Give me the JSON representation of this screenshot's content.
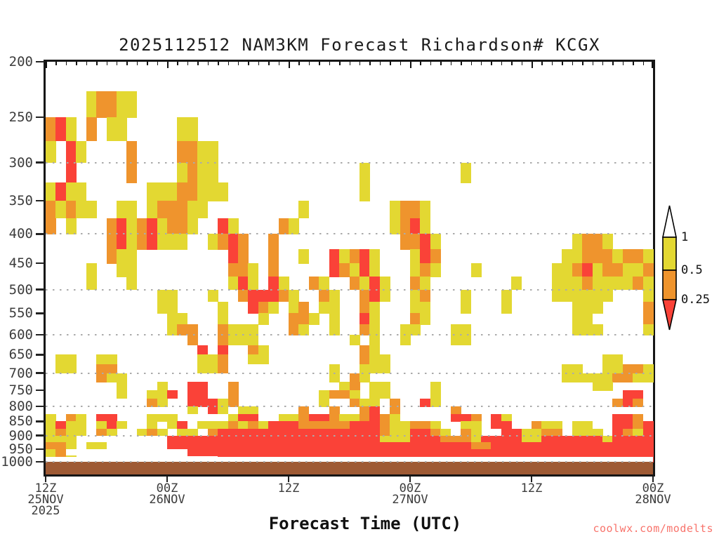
{
  "title": "2025112512 NAM3KM Forecast Richardson# KCGX",
  "watermark": "coolwx.com/modelts",
  "x_axis": {
    "title": "Forecast Time (UTC)",
    "ticks": [
      {
        "hour": 0,
        "lines": [
          "12Z",
          "25NOV",
          "2025"
        ]
      },
      {
        "hour": 12,
        "lines": [
          "00Z",
          "26NOV"
        ]
      },
      {
        "hour": 24,
        "lines": [
          "12Z"
        ]
      },
      {
        "hour": 36,
        "lines": [
          "00Z",
          "27NOV"
        ]
      },
      {
        "hour": 48,
        "lines": [
          "12Z"
        ]
      },
      {
        "hour": 60,
        "lines": [
          "00Z",
          "28NOV"
        ]
      }
    ]
  },
  "y_axis": {
    "unit": "hPa",
    "ticks": [
      200,
      250,
      300,
      350,
      400,
      450,
      500,
      550,
      600,
      650,
      700,
      750,
      800,
      850,
      900,
      950,
      1000
    ]
  },
  "gridlines_hpa": [
    300,
    400,
    500,
    600,
    700,
    800,
    900,
    1000
  ],
  "colorbar": {
    "labels": [
      "1",
      "0.5",
      "0.25"
    ],
    "segments": [
      {
        "range": "> 1",
        "color": "#ffffff"
      },
      {
        "range": "0.5 - 1",
        "color": "#e3d832"
      },
      {
        "range": "0.25 - 0.5",
        "color": "#ef942d"
      },
      {
        "range": "< 0.25",
        "color": "#fa4238"
      }
    ]
  },
  "colors": {
    "yellow": "#e3d832",
    "orange": "#ef942d",
    "red": "#fa4238",
    "brown": "#9e5a34",
    "grid": "#ababab",
    "text": "#3c3c3c",
    "watermark": "#f8736b"
  },
  "chart_data": {
    "type": "heatmap",
    "title": "2025112512 NAM3KM Forecast Richardson# KCGX",
    "xlabel": "Forecast Time (UTC)",
    "x_hours_range": [
      0,
      60
    ],
    "x_hours_per_cell": 1,
    "x_start": "12Z 25NOV 2025",
    "x_end": "00Z 28NOV 2025",
    "y_scale": "log-pressure",
    "pressure_top_hpa": 200,
    "pressure_bottom_hpa": 1000,
    "pressure_step_hpa": 25,
    "legend_thresholds": [
      0.25,
      0.5,
      1
    ],
    "cell_key": {
      ".": "Ri > 1 (white)",
      "y": "0.5 < Ri <= 1 (yellow)",
      "o": "0.25 < Ri <= 0.5 (orange)",
      "r": "Ri <= 0.25 (red)"
    },
    "surface": "brown below-ground band from ~1000 hPa to plot bottom",
    "rows": [
      "............................................................",
      "....yooyy...................................................",
      "ory.o.yy.....yy.............................................",
      "y.ry....o....ooyy...........................................",
      "..r.....o....yoyy..............y.........y..................",
      "yryy......yyyooyyy.............y............................",
      "oyoyy..yy.yoooyy.........y........yooy......................",
      "o.y...oryoryooy..ry....oy.........yory......................",
      "......oryoryyy..yoro..o............oory.............yooy....",
      "......oyy.........ro..o..y..ryory...yro............yyoooyooy",
      "....y..yy.........ooy.o.....royry...yoy...y.......yyoryooyyo",
      "....y...y.........yry.ry..oy..oyry..oy........y...yyyoyyyyoy",
      "...........yy...y..orrroy..oy..ory..yo...y...y....yyyyyy...y",
      "...........yy....y..roy.yo.yy..oy...yy...y...y......yyy....o",
      "............yy...y...y..ooy.y..ry...oy..............yy.....o",
      "............yoo..oyyy...oy..y..oy..yy...yy..........yyy....y",
      "..............o..oyyy.........y.y..y....yy..................",
      "...............r.r..oy.........oy...........................",
      ".yy..yy........yyo..yy.........oyy.....................yy...",
      ".yy..oo........yyo..........y..yyy.................yy..yyooy",
      ".....oyy....................y.oy...................yyyyyooyy",
      ".......y...y..rr..o..........yo.yy....y...............yy....",
      ".......y..yyr.rr..o........yooy.yy....y..................rr.",
      "..........oy..rrryo........y..oyy.o..ry.................oro.",
      "..............y.ry.yy....o..o..or.o.....o...................",
      "y.oy.rr...yyy.....yrr..yyorroyyoroy.....rro.ry..........rro.",
      "yryy.yry..y.yr.yyyoyoyrrrooooorrroyyooy..yy.rr..oyy.yy..rror",
      "yoyy.oy..yoy.yy.orrrrrrrrrrrrrrrroyyrroy.oy..rryyoo.yyy.royr",
      "yyy.........rrrrrrrrrrrrrrrrrrrrryyyrrroooyrrrryyrrrrrryrrrr",
      "ooy.yy......rrrrrrrrrrrrrrrrrrrrrrrrrrrrrroorrrrrrrrrrrrrrrr",
      "yo............rrrrrrrrrrrrrrrrrrrrrrrrrrrrrrrrrrrrrrrrrrrrrr",
      "yoy..............rrrrrrrrrrrrrrrrrrrrrrrrrrrrrrrrrrrrrrrrrrr"
    ]
  }
}
